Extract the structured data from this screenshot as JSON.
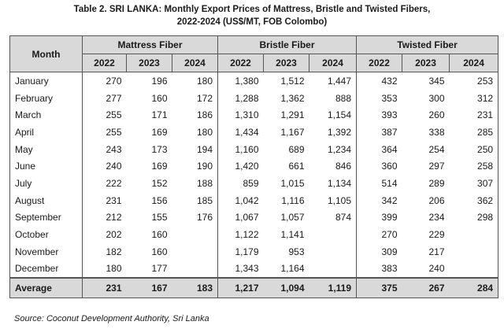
{
  "title": {
    "line1": "Table 2. SRI LANKA: Monthly Export Prices of Mattress, Bristle and Twisted Fibers,",
    "line2": "2022-2024 (US$/MT, FOB Colombo)"
  },
  "table": {
    "month_header": "Month",
    "groups": [
      "Mattress Fiber",
      "Bristle Fiber",
      "Twisted Fiber"
    ],
    "years": [
      "2022",
      "2023",
      "2024"
    ],
    "rows": [
      {
        "month": "January",
        "values": [
          "270",
          "196",
          "180",
          "1,380",
          "1,512",
          "1,447",
          "432",
          "345",
          "253"
        ]
      },
      {
        "month": "February",
        "values": [
          "277",
          "160",
          "172",
          "1,288",
          "1,362",
          "888",
          "353",
          "300",
          "312"
        ]
      },
      {
        "month": "March",
        "values": [
          "255",
          "171",
          "186",
          "1,310",
          "1,291",
          "1,154",
          "393",
          "260",
          "231"
        ]
      },
      {
        "month": "April",
        "values": [
          "255",
          "169",
          "180",
          "1,434",
          "1,167",
          "1,392",
          "387",
          "338",
          "285"
        ]
      },
      {
        "month": "May",
        "values": [
          "243",
          "173",
          "194",
          "1,160",
          "689",
          "1,234",
          "364",
          "254",
          "250"
        ]
      },
      {
        "month": "June",
        "values": [
          "240",
          "169",
          "190",
          "1,420",
          "661",
          "846",
          "360",
          "297",
          "258"
        ]
      },
      {
        "month": "July",
        "values": [
          "222",
          "152",
          "188",
          "859",
          "1,015",
          "1,134",
          "514",
          "289",
          "307"
        ]
      },
      {
        "month": "August",
        "values": [
          "231",
          "156",
          "185",
          "1,042",
          "1,116",
          "1,105",
          "342",
          "206",
          "362"
        ]
      },
      {
        "month": "September",
        "values": [
          "212",
          "155",
          "176",
          "1,067",
          "1,057",
          "874",
          "399",
          "234",
          "298"
        ]
      },
      {
        "month": "October",
        "values": [
          "202",
          "160",
          "",
          "1,122",
          "1,141",
          "",
          "270",
          "229",
          ""
        ]
      },
      {
        "month": "November",
        "values": [
          "182",
          "160",
          "",
          "1,179",
          "953",
          "",
          "309",
          "217",
          ""
        ]
      },
      {
        "month": "December",
        "values": [
          "180",
          "177",
          "",
          "1,343",
          "1,164",
          "",
          "383",
          "240",
          ""
        ]
      }
    ],
    "average": {
      "label": "Average",
      "values": [
        "231",
        "167",
        "183",
        "1,217",
        "1,094",
        "1,119",
        "375",
        "267",
        "284"
      ]
    }
  },
  "source": "Source: Coconut Development Authority, Sri Lanka"
}
